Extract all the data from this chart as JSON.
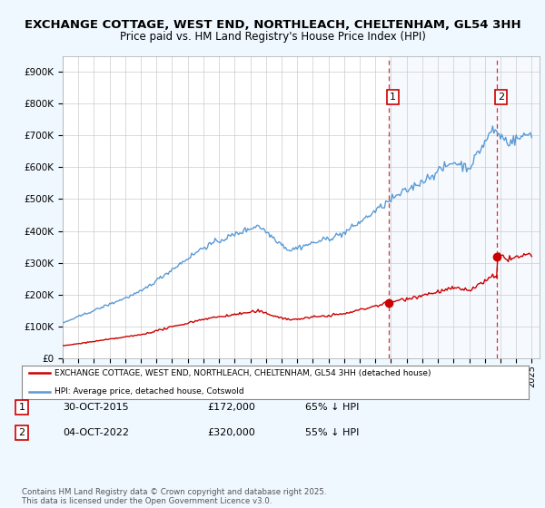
{
  "title_line1": "EXCHANGE COTTAGE, WEST END, NORTHLEACH, CHELTENHAM, GL54 3HH",
  "title_line2": "Price paid vs. HM Land Registry's House Price Index (HPI)",
  "title_fontsize": 9.5,
  "subtitle_fontsize": 8.5,
  "ylabel_ticks": [
    "£0",
    "£100K",
    "£200K",
    "£300K",
    "£400K",
    "£500K",
    "£600K",
    "£700K",
    "£800K",
    "£900K"
  ],
  "ytick_values": [
    0,
    100000,
    200000,
    300000,
    400000,
    500000,
    600000,
    700000,
    800000,
    900000
  ],
  "ylim": [
    0,
    950000
  ],
  "xlim_start": 1995.0,
  "xlim_end": 2025.5,
  "hpi_color": "#5b9bd5",
  "price_color": "#cc0000",
  "marker1_x": 2015.83,
  "marker1_y": 172000,
  "marker2_x": 2022.75,
  "marker2_y": 320000,
  "vline1_x": 2015.83,
  "vline2_x": 2022.75,
  "vline_color": "#cc0000",
  "shade_color": "#ddeeff",
  "legend_label_red": "EXCHANGE COTTAGE, WEST END, NORTHLEACH, CHELTENHAM, GL54 3HH (detached house)",
  "legend_label_blue": "HPI: Average price, detached house, Cotswold",
  "note1_date": "30-OCT-2015",
  "note1_price": "£172,000",
  "note1_hpi": "65% ↓ HPI",
  "note2_date": "04-OCT-2022",
  "note2_price": "£320,000",
  "note2_hpi": "55% ↓ HPI",
  "footer": "Contains HM Land Registry data © Crown copyright and database right 2025.\nThis data is licensed under the Open Government Licence v3.0.",
  "bg_color": "#f0f8ff",
  "plot_bg_color": "#ffffff",
  "grid_color": "#cccccc"
}
